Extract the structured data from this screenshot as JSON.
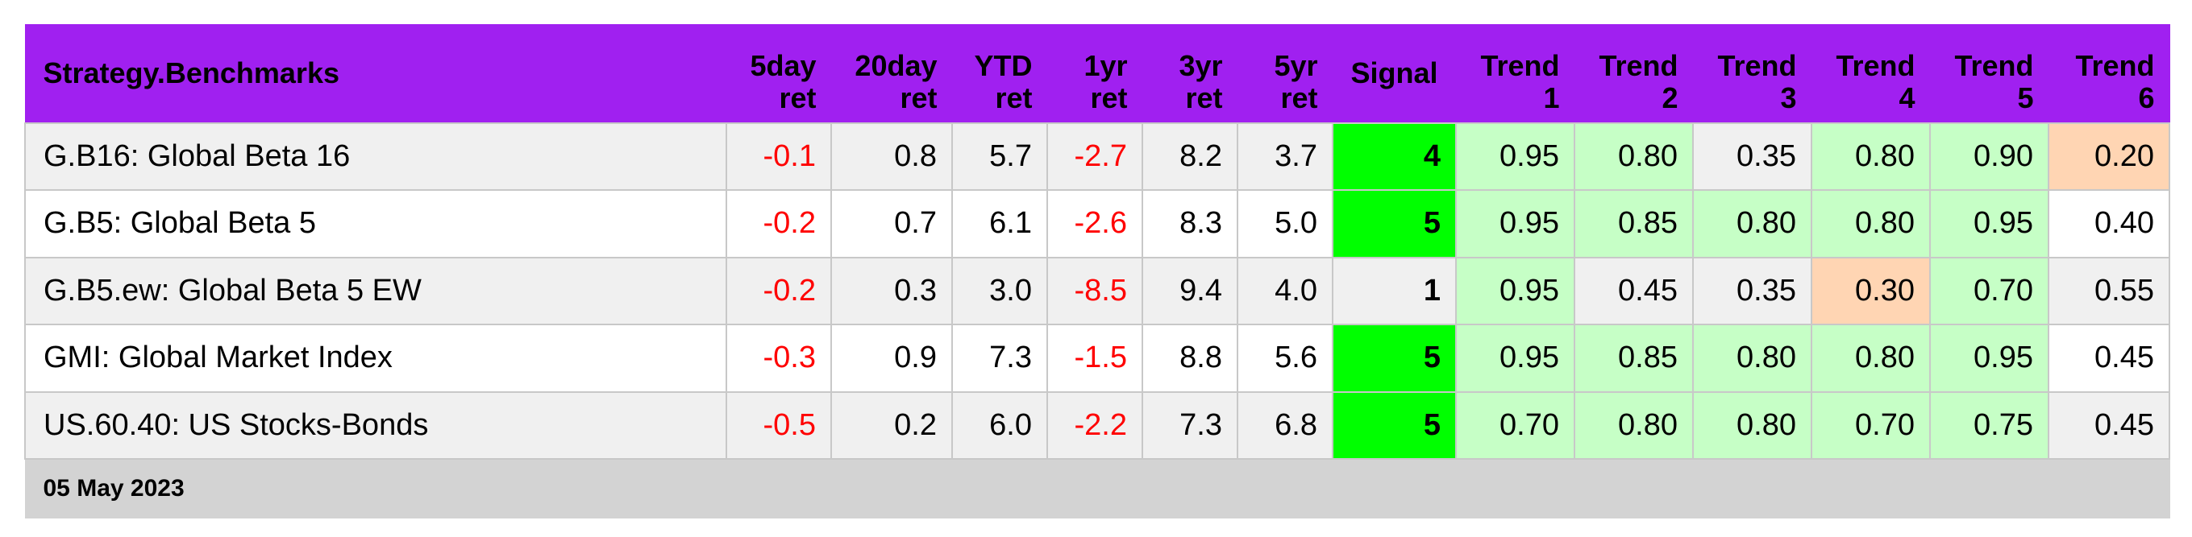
{
  "table": {
    "headers": [
      {
        "l1": "Strategy.Benchmarks",
        "l2": ""
      },
      {
        "l1": "5day",
        "l2": "ret"
      },
      {
        "l1": "20day",
        "l2": "ret"
      },
      {
        "l1": "YTD",
        "l2": "ret"
      },
      {
        "l1": "1yr",
        "l2": "ret"
      },
      {
        "l1": "3yr",
        "l2": "ret"
      },
      {
        "l1": "5yr",
        "l2": "ret"
      },
      {
        "l1": "Signal",
        "l2": ""
      },
      {
        "l1": "Trend",
        "l2": "1"
      },
      {
        "l1": "Trend",
        "l2": "2"
      },
      {
        "l1": "Trend",
        "l2": "3"
      },
      {
        "l1": "Trend",
        "l2": "4"
      },
      {
        "l1": "Trend",
        "l2": "5"
      },
      {
        "l1": "Trend",
        "l2": "6"
      }
    ],
    "rows": [
      {
        "name": "G.B16: Global Beta 16",
        "d5": "-0.1",
        "d20": "0.8",
        "ytd": "5.7",
        "y1": "-2.7",
        "y3": "8.2",
        "y5": "3.7",
        "signal": "4",
        "t1": "0.95",
        "t2": "0.80",
        "t3": "0.35",
        "t4": "0.80",
        "t5": "0.90",
        "t6": "0.20"
      },
      {
        "name": "G.B5: Global Beta 5",
        "d5": "-0.2",
        "d20": "0.7",
        "ytd": "6.1",
        "y1": "-2.6",
        "y3": "8.3",
        "y5": "5.0",
        "signal": "5",
        "t1": "0.95",
        "t2": "0.85",
        "t3": "0.80",
        "t4": "0.80",
        "t5": "0.95",
        "t6": "0.40"
      },
      {
        "name": "G.B5.ew: Global Beta 5 EW",
        "d5": "-0.2",
        "d20": "0.3",
        "ytd": "3.0",
        "y1": "-8.5",
        "y3": "9.4",
        "y5": "4.0",
        "signal": "1",
        "t1": "0.95",
        "t2": "0.45",
        "t3": "0.35",
        "t4": "0.30",
        "t5": "0.70",
        "t6": "0.55"
      },
      {
        "name": "GMI: Global Market Index",
        "d5": "-0.3",
        "d20": "0.9",
        "ytd": "7.3",
        "y1": "-1.5",
        "y3": "8.8",
        "y5": "5.6",
        "signal": "5",
        "t1": "0.95",
        "t2": "0.85",
        "t3": "0.80",
        "t4": "0.80",
        "t5": "0.95",
        "t6": "0.45"
      },
      {
        "name": "US.60.40: US Stocks-Bonds",
        "d5": "-0.5",
        "d20": "0.2",
        "ytd": "6.0",
        "y1": "-2.2",
        "y3": "7.3",
        "y5": "6.8",
        "signal": "5",
        "t1": "0.70",
        "t2": "0.80",
        "t3": "0.80",
        "t4": "0.70",
        "t5": "0.75",
        "t6": "0.45"
      }
    ],
    "footer_date": "05 May 2023"
  },
  "colors": {
    "header_bg": "#a020f0",
    "negative_text": "#ff0000",
    "signal_strong": "#00ff00",
    "trend_high": "#c6ffc6",
    "trend_low": "#ffd5b3",
    "neutral_alt": "#f0f0f0",
    "neutral": "#ffffff",
    "footer_bg": "#d3d3d3"
  }
}
